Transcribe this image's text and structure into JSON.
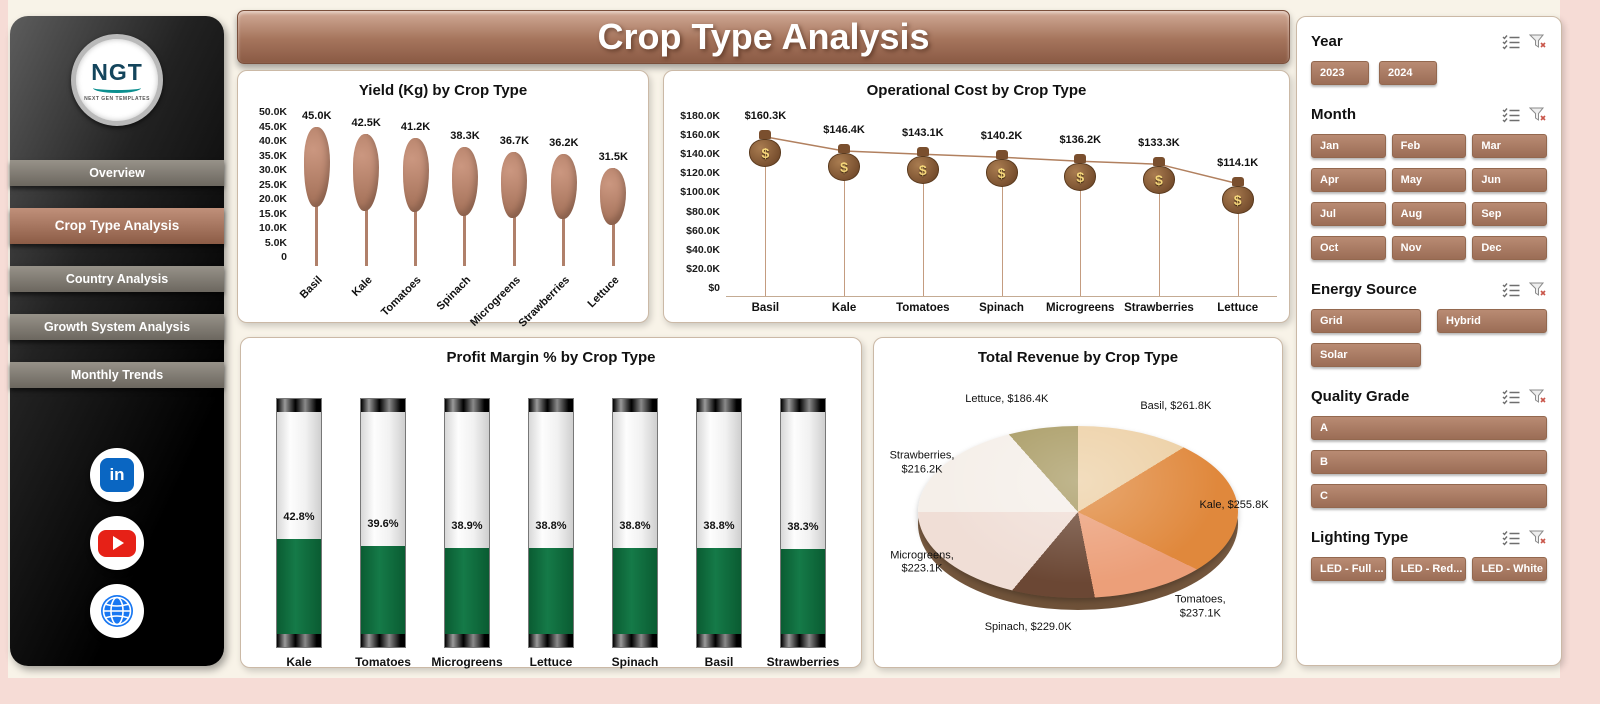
{
  "title": "Crop Type Analysis",
  "theme": {
    "banner_brown": "#a5745c",
    "slicer_button_brown": "#a87a62",
    "sidebar_active_brown": "#a06a50",
    "gauge_green": "#0e6a3c",
    "bar_brown": "#b0806a",
    "background_cream": "#f8f3e8",
    "edge_pink": "#f6dcd6"
  },
  "sidebar": {
    "logo_text": "NGT",
    "logo_subtext": "NEXT GEN TEMPLATES",
    "items": [
      {
        "label": "Overview",
        "active": false
      },
      {
        "label": "Crop Type Analysis",
        "active": true
      },
      {
        "label": "Country Analysis",
        "active": false
      },
      {
        "label": "Growth System Analysis",
        "active": false
      },
      {
        "label": "Monthly Trends",
        "active": false
      }
    ],
    "social": [
      {
        "name": "linkedin-icon",
        "glyph": "in"
      },
      {
        "name": "youtube-icon"
      },
      {
        "name": "website-globe-icon"
      }
    ]
  },
  "chart_data": [
    {
      "type": "bar",
      "title": "Yield (Kg) by Crop Type",
      "categories": [
        "Basil",
        "Kale",
        "Tomatoes",
        "Spinach",
        "Microgreens",
        "Strawberries",
        "Lettuce"
      ],
      "values": [
        45.0,
        42.5,
        41.2,
        38.3,
        36.7,
        36.2,
        31.5
      ],
      "labels": [
        "45.0K",
        "42.5K",
        "41.2K",
        "38.3K",
        "36.7K",
        "36.2K",
        "31.5K"
      ],
      "ylim": [
        0,
        50
      ],
      "yticks": [
        "50.0K",
        "45.0K",
        "40.0K",
        "35.0K",
        "30.0K",
        "25.0K",
        "20.0K",
        "15.0K",
        "10.0K",
        "5.0K",
        "0"
      ]
    },
    {
      "type": "line",
      "title": "Operational Cost by Crop Type",
      "categories": [
        "Basil",
        "Kale",
        "Tomatoes",
        "Spinach",
        "Microgreens",
        "Strawberries",
        "Lettuce"
      ],
      "values": [
        160.3,
        146.4,
        143.1,
        140.2,
        136.2,
        133.3,
        114.1
      ],
      "labels": [
        "$160.3K",
        "$146.4K",
        "$143.1K",
        "$140.2K",
        "$136.2K",
        "$133.3K",
        "$114.1K"
      ],
      "ylim": [
        0,
        180
      ],
      "yticks": [
        "$180.0K",
        "$160.0K",
        "$140.0K",
        "$120.0K",
        "$100.0K",
        "$80.0K",
        "$60.0K",
        "$40.0K",
        "$20.0K",
        "$0"
      ],
      "marker": "money-bag-icon"
    },
    {
      "type": "bar",
      "title": "Profit Margin % by Crop Type",
      "categories": [
        "Kale",
        "Tomatoes",
        "Microgreens",
        "Lettuce",
        "Spinach",
        "Basil",
        "Strawberries"
      ],
      "values": [
        42.8,
        39.6,
        38.9,
        38.8,
        38.8,
        38.8,
        38.3
      ],
      "labels": [
        "42.8%",
        "39.6%",
        "38.9%",
        "38.8%",
        "38.8%",
        "38.8%",
        "38.3%"
      ],
      "ylim": [
        0,
        100
      ],
      "style": "thermometer-gauge"
    },
    {
      "type": "pie",
      "title": "Total Revenue by Crop Type",
      "categories": [
        "Basil",
        "Kale",
        "Tomatoes",
        "Spinach",
        "Microgreens",
        "Strawberries",
        "Lettuce"
      ],
      "values": [
        261.8,
        255.8,
        237.1,
        229.0,
        223.1,
        216.2,
        186.4
      ],
      "labels": [
        "Basil, $261.8K",
        "Kale, $255.8K",
        "Tomatoes, $237.1K",
        "Spinach, $229.0K",
        "Microgreens, $223.1K",
        "Strawberries, $216.2K",
        "Lettuce, $186.4K"
      ],
      "colors": [
        "#edd0a5",
        "#e0883c",
        "#ec9f79",
        "#6b4734",
        "#f0ded6",
        "#f5efe9",
        "#a89a62"
      ],
      "effect": "3d"
    }
  ],
  "filters": {
    "icon_names": [
      "multi-select-icon",
      "clear-filter-icon"
    ],
    "sections": [
      {
        "title": "Year",
        "layout": "row",
        "buttons": [
          "2023",
          "2024"
        ]
      },
      {
        "title": "Month",
        "layout": "grid3",
        "buttons": [
          "Jan",
          "Feb",
          "Mar",
          "Apr",
          "May",
          "Jun",
          "Jul",
          "Aug",
          "Sep",
          "Oct",
          "Nov",
          "Dec"
        ]
      },
      {
        "title": "Energy Source",
        "layout": "grid2",
        "buttons": [
          "Grid",
          "Hybrid",
          "Solar"
        ]
      },
      {
        "title": "Quality Grade",
        "layout": "grid1",
        "buttons": [
          "A",
          "B",
          "C"
        ]
      },
      {
        "title": "Lighting Type",
        "layout": "grid3",
        "buttons": [
          "LED - Full ...",
          "LED - Red...",
          "LED - White"
        ]
      }
    ]
  }
}
